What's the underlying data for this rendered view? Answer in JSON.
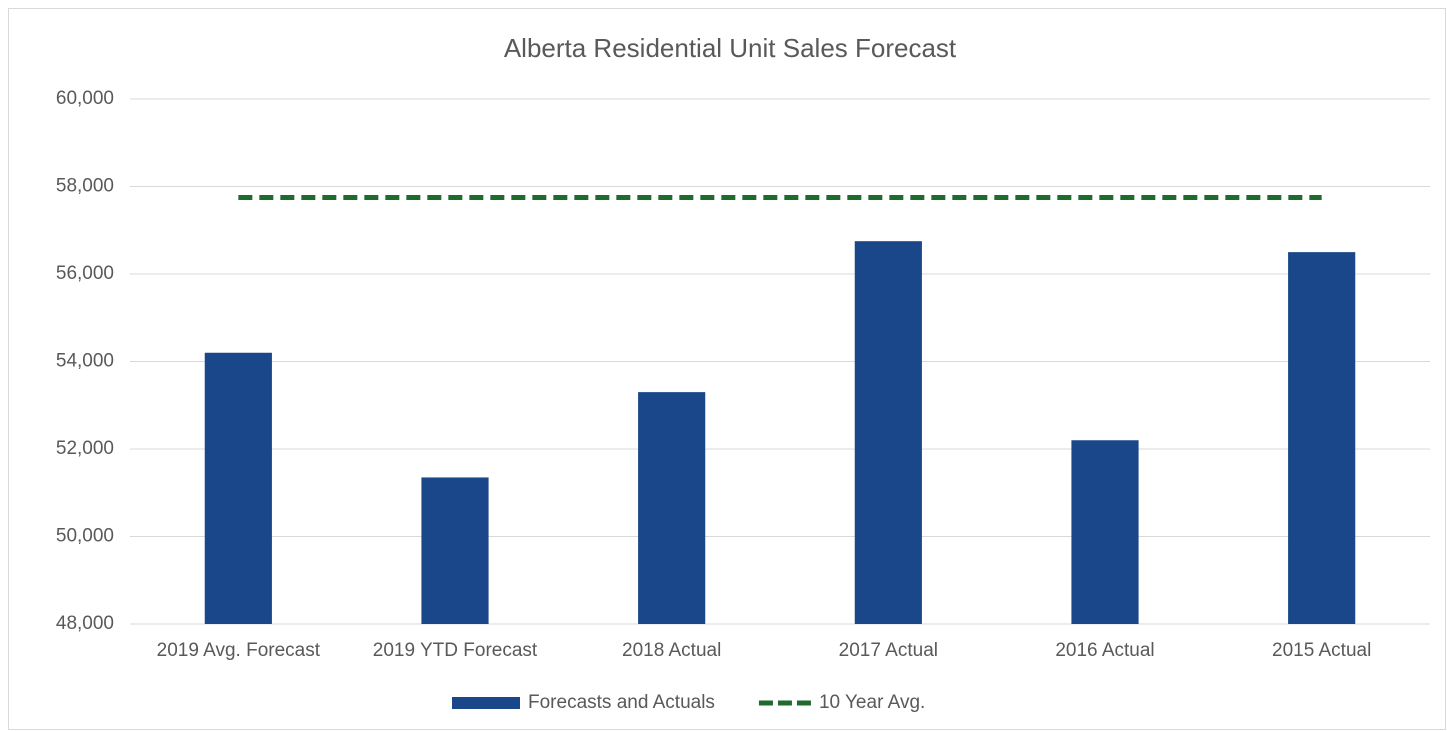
{
  "chart_data": {
    "type": "bar",
    "title": "Alberta Residential Unit Sales Forecast",
    "categories": [
      "2019 Avg. Forecast",
      "2019 YTD Forecast",
      "2018 Actual",
      "2017 Actual",
      "2016 Actual",
      "2015 Actual"
    ],
    "series": [
      {
        "name": "Forecasts and Actuals",
        "type": "bar",
        "color": "#1a4789",
        "values": [
          54200,
          51350,
          53300,
          56750,
          52200,
          56500
        ]
      },
      {
        "name": "10 Year Avg.",
        "type": "line",
        "color": "#1e6b2e",
        "values": [
          57750,
          57750,
          57750,
          57750,
          57750,
          57750
        ]
      }
    ],
    "ylim": [
      48000,
      60000
    ],
    "yticks": [
      {
        "value": 48000,
        "label": "48,000"
      },
      {
        "value": 50000,
        "label": "50,000"
      },
      {
        "value": 52000,
        "label": "52,000"
      },
      {
        "value": 54000,
        "label": "54,000"
      },
      {
        "value": 56000,
        "label": "56,000"
      },
      {
        "value": 58000,
        "label": "58,000"
      },
      {
        "value": 60000,
        "label": "60,000"
      }
    ],
    "grid": true,
    "legend": "bottom"
  }
}
